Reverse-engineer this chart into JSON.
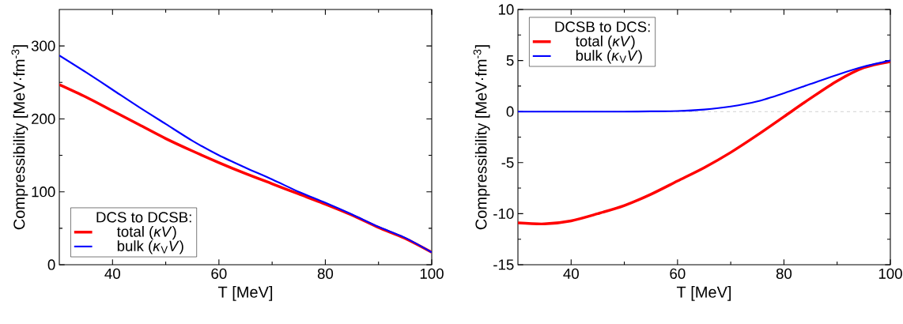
{
  "chart_data": [
    {
      "type": "line",
      "xlabel": "T [MeV]",
      "ylabel": "Compressibility [MeV·fm$^{-3}$]",
      "legend_title": "DCS to DCSB:",
      "legend": "bottom left",
      "x": [
        30,
        35,
        40,
        45,
        50,
        55,
        60,
        65,
        70,
        75,
        80,
        85,
        90,
        95,
        100
      ],
      "xlim": [
        30,
        100
      ],
      "xticks": [
        40,
        60,
        80,
        100
      ],
      "ylim": [
        0,
        350
      ],
      "yticks": [
        0,
        100,
        200,
        300
      ],
      "series": [
        {
          "name": "total (*κV*)",
          "color": "#ff0000",
          "values": [
            247,
            230,
            211,
            192,
            173,
            156,
            140,
            125,
            111,
            97,
            83,
            68,
            51,
            36,
            17
          ]
        },
        {
          "name": "bulk (*κ*$_{V}$*V*)",
          "color": "#0000ff",
          "values": [
            287,
            264,
            240,
            216,
            193,
            170,
            150,
            133,
            117,
            100,
            85,
            69,
            52,
            37,
            17
          ]
        }
      ]
    },
    {
      "type": "line",
      "xlabel": "T [MeV]",
      "ylabel": "Compressibility [MeV·fm$^{-3}$]",
      "legend_title": "DCSB to DCS:",
      "legend": "top left",
      "x": [
        30,
        35,
        40,
        45,
        50,
        55,
        60,
        65,
        70,
        75,
        80,
        85,
        90,
        95,
        100
      ],
      "xlim": [
        30,
        100
      ],
      "xticks": [
        40,
        60,
        80,
        100
      ],
      "ylim": [
        -15,
        10
      ],
      "yticks": [
        -15,
        -10,
        -5,
        0,
        5,
        10
      ],
      "ref_lines": [
        {
          "axis": "y",
          "value": 0,
          "color": "#808080",
          "line_style": "dashed"
        }
      ],
      "series": [
        {
          "name": "total (*κV*)",
          "color": "#ff0000",
          "values": [
            -10.9,
            -11.0,
            -10.7,
            -10.0,
            -9.2,
            -8.1,
            -6.8,
            -5.5,
            -4.0,
            -2.3,
            -0.5,
            1.3,
            3.0,
            4.3,
            4.9
          ]
        },
        {
          "name": "bulk (*κ*$_{V}$*V*)",
          "color": "#0000ff",
          "values": [
            0,
            0,
            0,
            0,
            0,
            0.02,
            0.05,
            0.2,
            0.5,
            1.0,
            1.8,
            2.7,
            3.6,
            4.4,
            5.0
          ]
        }
      ]
    }
  ]
}
